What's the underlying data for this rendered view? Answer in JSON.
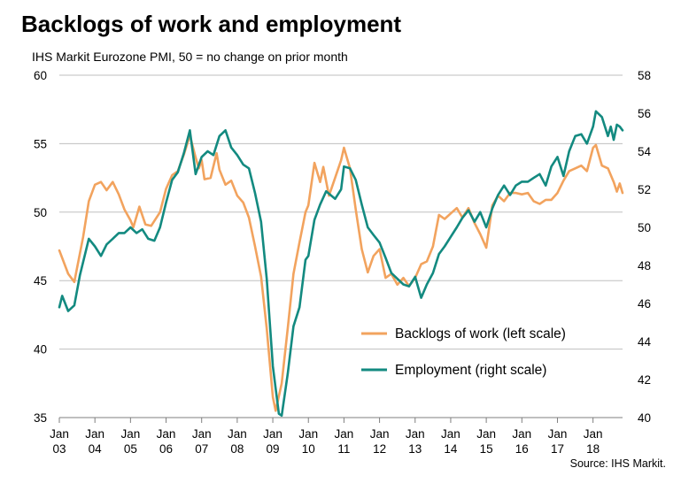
{
  "title": "Backlogs of work and employment",
  "subtitle": "IHS Markit  Eurozone PMI, 50 = no change on prior month",
  "source": "Source: IHS Markit.",
  "colors": {
    "backlogs": "#F2A35E",
    "employment": "#138A80",
    "grid": "#BFBFBF",
    "axis": "#7F7F7F"
  },
  "chart_data": {
    "type": "line",
    "title": "Backlogs of work and employment",
    "subtitle": "IHS Markit  Eurozone PMI, 50 = no change on prior month",
    "x_ticks": [
      {
        "year": 2003,
        "line1": "Jan",
        "line2": "03"
      },
      {
        "year": 2004,
        "line1": "Jan",
        "line2": "04"
      },
      {
        "year": 2005,
        "line1": "Jan",
        "line2": "05"
      },
      {
        "year": 2006,
        "line1": "Jan",
        "line2": "06"
      },
      {
        "year": 2007,
        "line1": "Jan",
        "line2": "07"
      },
      {
        "year": 2008,
        "line1": "Jan",
        "line2": "08"
      },
      {
        "year": 2009,
        "line1": "Jan",
        "line2": "09"
      },
      {
        "year": 2010,
        "line1": "Jan",
        "line2": "10"
      },
      {
        "year": 2011,
        "line1": "Jan",
        "line2": "11"
      },
      {
        "year": 2012,
        "line1": "Jan",
        "line2": "12"
      },
      {
        "year": 2013,
        "line1": "Jan",
        "line2": "13"
      },
      {
        "year": 2014,
        "line1": "Jan",
        "line2": "14"
      },
      {
        "year": 2015,
        "line1": "Jan",
        "line2": "15"
      },
      {
        "year": 2016,
        "line1": "Jan",
        "line2": "16"
      },
      {
        "year": 2017,
        "line1": "Jan",
        "line2": "17"
      },
      {
        "year": 2018,
        "line1": "Jan",
        "line2": "18"
      }
    ],
    "x_range": [
      2003,
      2018.83
    ],
    "y_left": {
      "ticks": [
        "35",
        "40",
        "45",
        "50",
        "55",
        "60"
      ],
      "range": [
        35,
        60
      ]
    },
    "y_right": {
      "ticks": [
        "40",
        "42",
        "44",
        "46",
        "48",
        "50",
        "52",
        "54",
        "56",
        "58"
      ],
      "range": [
        40,
        58
      ]
    },
    "grid": true,
    "legend_position": "inside bottom-right",
    "series": [
      {
        "name": "Backlogs of work (left scale)",
        "axis": "left",
        "points": [
          [
            2003.0,
            47.2
          ],
          [
            2003.25,
            45.5
          ],
          [
            2003.42,
            44.9
          ],
          [
            2003.67,
            48.2
          ],
          [
            2003.83,
            50.8
          ],
          [
            2004.0,
            52.0
          ],
          [
            2004.17,
            52.2
          ],
          [
            2004.33,
            51.6
          ],
          [
            2004.5,
            52.2
          ],
          [
            2004.67,
            51.3
          ],
          [
            2004.83,
            50.2
          ],
          [
            2005.0,
            49.4
          ],
          [
            2005.08,
            48.9
          ],
          [
            2005.25,
            50.4
          ],
          [
            2005.42,
            49.1
          ],
          [
            2005.58,
            49.0
          ],
          [
            2005.83,
            50.0
          ],
          [
            2006.0,
            51.7
          ],
          [
            2006.17,
            52.7
          ],
          [
            2006.33,
            53.0
          ],
          [
            2006.5,
            54.2
          ],
          [
            2006.67,
            55.6
          ],
          [
            2006.83,
            54.0
          ],
          [
            2006.92,
            53.2
          ],
          [
            2007.0,
            53.8
          ],
          [
            2007.08,
            52.4
          ],
          [
            2007.25,
            52.5
          ],
          [
            2007.42,
            54.3
          ],
          [
            2007.5,
            53.1
          ],
          [
            2007.67,
            52.0
          ],
          [
            2007.83,
            52.3
          ],
          [
            2008.0,
            51.2
          ],
          [
            2008.17,
            50.7
          ],
          [
            2008.33,
            49.6
          ],
          [
            2008.5,
            47.5
          ],
          [
            2008.67,
            45.3
          ],
          [
            2008.83,
            41.5
          ],
          [
            2009.0,
            36.5
          ],
          [
            2009.08,
            35.5
          ],
          [
            2009.25,
            37.5
          ],
          [
            2009.42,
            41.5
          ],
          [
            2009.58,
            45.5
          ],
          [
            2009.75,
            47.8
          ],
          [
            2009.92,
            50.0
          ],
          [
            2010.0,
            50.5
          ],
          [
            2010.17,
            53.6
          ],
          [
            2010.33,
            52.2
          ],
          [
            2010.42,
            53.3
          ],
          [
            2010.58,
            51.2
          ],
          [
            2010.75,
            52.5
          ],
          [
            2010.92,
            53.8
          ],
          [
            2011.0,
            54.7
          ],
          [
            2011.17,
            53.2
          ],
          [
            2011.33,
            50.2
          ],
          [
            2011.5,
            47.3
          ],
          [
            2011.67,
            45.6
          ],
          [
            2011.83,
            46.8
          ],
          [
            2012.0,
            47.3
          ],
          [
            2012.17,
            45.2
          ],
          [
            2012.33,
            45.5
          ],
          [
            2012.5,
            44.7
          ],
          [
            2012.67,
            45.2
          ],
          [
            2012.83,
            44.6
          ],
          [
            2013.0,
            45.2
          ],
          [
            2013.17,
            46.2
          ],
          [
            2013.33,
            46.4
          ],
          [
            2013.5,
            47.5
          ],
          [
            2013.67,
            49.8
          ],
          [
            2013.83,
            49.5
          ],
          [
            2014.0,
            49.9
          ],
          [
            2014.17,
            50.3
          ],
          [
            2014.33,
            49.6
          ],
          [
            2014.5,
            50.3
          ],
          [
            2014.67,
            49.2
          ],
          [
            2014.83,
            48.4
          ],
          [
            2015.0,
            47.4
          ],
          [
            2015.17,
            50.5
          ],
          [
            2015.33,
            51.2
          ],
          [
            2015.5,
            50.8
          ],
          [
            2015.67,
            51.4
          ],
          [
            2015.83,
            51.4
          ],
          [
            2016.0,
            51.3
          ],
          [
            2016.17,
            51.4
          ],
          [
            2016.33,
            50.8
          ],
          [
            2016.5,
            50.6
          ],
          [
            2016.67,
            50.9
          ],
          [
            2016.83,
            50.9
          ],
          [
            2017.0,
            51.4
          ],
          [
            2017.17,
            52.3
          ],
          [
            2017.33,
            53.0
          ],
          [
            2017.5,
            53.2
          ],
          [
            2017.67,
            53.4
          ],
          [
            2017.83,
            53.0
          ],
          [
            2018.0,
            54.7
          ],
          [
            2018.08,
            54.9
          ],
          [
            2018.25,
            53.4
          ],
          [
            2018.42,
            53.2
          ],
          [
            2018.58,
            52.2
          ],
          [
            2018.67,
            51.5
          ],
          [
            2018.75,
            52.1
          ],
          [
            2018.83,
            51.4
          ]
        ]
      },
      {
        "name": "Employment (right scale)",
        "axis": "right",
        "points": [
          [
            2003.0,
            45.8
          ],
          [
            2003.08,
            46.4
          ],
          [
            2003.25,
            45.6
          ],
          [
            2003.42,
            45.9
          ],
          [
            2003.58,
            47.5
          ],
          [
            2003.83,
            49.4
          ],
          [
            2004.0,
            49.0
          ],
          [
            2004.17,
            48.5
          ],
          [
            2004.33,
            49.1
          ],
          [
            2004.5,
            49.4
          ],
          [
            2004.67,
            49.7
          ],
          [
            2004.83,
            49.7
          ],
          [
            2005.0,
            50.0
          ],
          [
            2005.17,
            49.7
          ],
          [
            2005.33,
            49.9
          ],
          [
            2005.5,
            49.4
          ],
          [
            2005.67,
            49.3
          ],
          [
            2005.83,
            50.0
          ],
          [
            2006.0,
            51.3
          ],
          [
            2006.17,
            52.5
          ],
          [
            2006.33,
            52.9
          ],
          [
            2006.5,
            53.9
          ],
          [
            2006.67,
            55.1
          ],
          [
            2006.83,
            52.8
          ],
          [
            2007.0,
            53.7
          ],
          [
            2007.17,
            54.0
          ],
          [
            2007.33,
            53.8
          ],
          [
            2007.5,
            54.8
          ],
          [
            2007.67,
            55.1
          ],
          [
            2007.83,
            54.2
          ],
          [
            2008.0,
            53.8
          ],
          [
            2008.17,
            53.3
          ],
          [
            2008.33,
            53.1
          ],
          [
            2008.5,
            51.8
          ],
          [
            2008.67,
            50.3
          ],
          [
            2008.83,
            47.3
          ],
          [
            2009.0,
            42.7
          ],
          [
            2009.17,
            40.2
          ],
          [
            2009.25,
            40.1
          ],
          [
            2009.42,
            42.3
          ],
          [
            2009.58,
            44.8
          ],
          [
            2009.75,
            45.8
          ],
          [
            2009.92,
            48.3
          ],
          [
            2010.0,
            48.5
          ],
          [
            2010.17,
            50.4
          ],
          [
            2010.33,
            51.2
          ],
          [
            2010.5,
            51.9
          ],
          [
            2010.75,
            51.5
          ],
          [
            2010.92,
            52.0
          ],
          [
            2011.0,
            53.2
          ],
          [
            2011.17,
            53.1
          ],
          [
            2011.33,
            52.5
          ],
          [
            2011.5,
            51.2
          ],
          [
            2011.67,
            50.0
          ],
          [
            2011.83,
            49.6
          ],
          [
            2012.0,
            49.2
          ],
          [
            2012.17,
            48.4
          ],
          [
            2012.33,
            47.6
          ],
          [
            2012.5,
            47.3
          ],
          [
            2012.67,
            47.0
          ],
          [
            2012.83,
            46.9
          ],
          [
            2013.0,
            47.4
          ],
          [
            2013.17,
            46.3
          ],
          [
            2013.33,
            47.0
          ],
          [
            2013.5,
            47.6
          ],
          [
            2013.67,
            48.6
          ],
          [
            2013.83,
            49.0
          ],
          [
            2014.0,
            49.5
          ],
          [
            2014.17,
            50.0
          ],
          [
            2014.33,
            50.5
          ],
          [
            2014.5,
            50.9
          ],
          [
            2014.67,
            50.3
          ],
          [
            2014.83,
            50.8
          ],
          [
            2015.0,
            50.0
          ],
          [
            2015.17,
            51.0
          ],
          [
            2015.33,
            51.7
          ],
          [
            2015.5,
            52.2
          ],
          [
            2015.67,
            51.7
          ],
          [
            2015.83,
            52.2
          ],
          [
            2016.0,
            52.4
          ],
          [
            2016.17,
            52.4
          ],
          [
            2016.33,
            52.6
          ],
          [
            2016.5,
            52.8
          ],
          [
            2016.67,
            52.2
          ],
          [
            2016.83,
            53.2
          ],
          [
            2017.0,
            53.7
          ],
          [
            2017.17,
            52.7
          ],
          [
            2017.33,
            54.0
          ],
          [
            2017.5,
            54.8
          ],
          [
            2017.67,
            54.9
          ],
          [
            2017.83,
            54.4
          ],
          [
            2018.0,
            55.3
          ],
          [
            2018.08,
            56.1
          ],
          [
            2018.25,
            55.8
          ],
          [
            2018.42,
            54.8
          ],
          [
            2018.5,
            55.3
          ],
          [
            2018.58,
            54.6
          ],
          [
            2018.67,
            55.4
          ],
          [
            2018.75,
            55.3
          ],
          [
            2018.83,
            55.1
          ]
        ]
      }
    ]
  }
}
